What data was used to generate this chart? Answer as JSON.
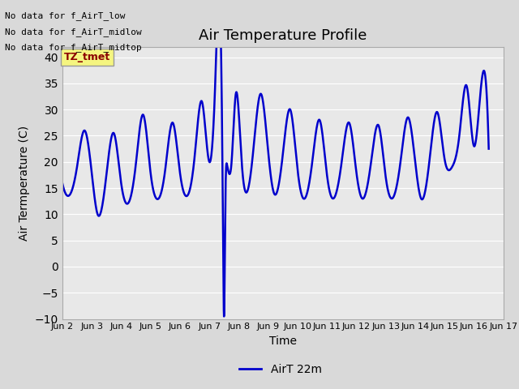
{
  "title": "Air Temperature Profile",
  "xlabel": "Time",
  "ylabel": "Air Termperature (C)",
  "ylim": [
    -10,
    42
  ],
  "yticks": [
    -10,
    -5,
    0,
    5,
    10,
    15,
    20,
    25,
    30,
    35,
    40
  ],
  "line_color": "#0000CC",
  "line_width": 1.8,
  "legend_label": "AirT 22m",
  "legend_line_color": "#0000CC",
  "annotations": [
    "No data for f_AirT_low",
    "No data for f_AirT_midlow",
    "No data for f_AirT_midtop"
  ],
  "tz_label": "TZ_tmet",
  "background_color": "#d9d9d9",
  "plot_bg_color": "#e8e8e8",
  "x_tick_labels": [
    "Jun 2",
    "Jun 3",
    "Jun 4",
    "Jun 5",
    "Jun 6",
    "Jun 7",
    "Jun 8",
    "Jun 9",
    "Jun 10",
    "Jun 11",
    "Jun 12",
    "Jun 13",
    "Jun 14",
    "Jun 15",
    "Jun 16",
    "Jun 17"
  ],
  "key_times": [
    2.0,
    2.2,
    2.5,
    2.75,
    3.0,
    3.2,
    3.5,
    3.75,
    4.0,
    4.2,
    4.5,
    4.75,
    5.0,
    5.2,
    5.5,
    5.75,
    6.0,
    6.2,
    6.5,
    6.75,
    7.0,
    7.2,
    7.42,
    7.46,
    7.5,
    7.54,
    7.6,
    7.75,
    7.9,
    8.1,
    8.3,
    8.5,
    8.75,
    9.0,
    9.2,
    9.5,
    9.75,
    10.0,
    10.2,
    10.5,
    10.75,
    11.0,
    11.2,
    11.5,
    11.75,
    12.0,
    12.2,
    12.5,
    12.75,
    13.0,
    13.2,
    13.5,
    13.75,
    14.0,
    14.2,
    14.5,
    14.75,
    15.0,
    15.25,
    15.5,
    15.75,
    16.0,
    16.25,
    16.5
  ],
  "key_temps": [
    16.0,
    13.5,
    19.0,
    26.0,
    18.0,
    10.0,
    17.5,
    25.5,
    16.0,
    12.0,
    19.5,
    29.0,
    18.0,
    13.0,
    18.5,
    27.5,
    18.0,
    13.5,
    21.0,
    31.5,
    20.0,
    35.0,
    33.0,
    10.0,
    -9.5,
    10.0,
    19.5,
    19.5,
    33.0,
    20.0,
    14.5,
    22.5,
    33.0,
    22.0,
    14.0,
    21.5,
    30.0,
    18.5,
    13.0,
    20.0,
    28.0,
    17.5,
    13.0,
    20.0,
    27.5,
    18.0,
    13.0,
    20.0,
    27.0,
    17.0,
    13.0,
    20.0,
    28.5,
    20.0,
    13.0,
    21.0,
    29.5,
    20.5,
    19.0,
    25.0,
    34.5,
    23.0,
    35.0,
    22.5
  ]
}
